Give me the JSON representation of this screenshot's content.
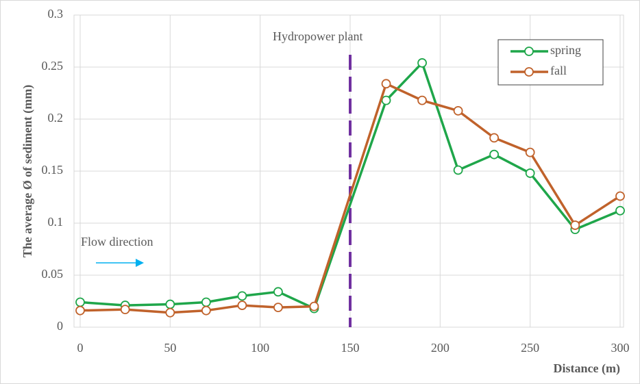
{
  "chart_data": {
    "type": "line",
    "xlabel": "Distance (m)",
    "ylabel": "The average Ø of sediment (mm)",
    "x": [
      0,
      25,
      50,
      70,
      90,
      110,
      130,
      170,
      190,
      210,
      230,
      250,
      275,
      300
    ],
    "series": [
      {
        "name": "spring",
        "color": "#1fa64a",
        "values": [
          0.024,
          0.021,
          0.022,
          0.024,
          0.03,
          0.034,
          0.018,
          0.218,
          0.254,
          0.151,
          0.166,
          0.148,
          0.094,
          0.112
        ]
      },
      {
        "name": "fall",
        "color": "#c0622b",
        "values": [
          0.016,
          0.017,
          0.014,
          0.016,
          0.021,
          0.019,
          0.02,
          0.234,
          0.218,
          0.208,
          0.182,
          0.168,
          0.098,
          0.126
        ]
      }
    ],
    "xlim": [
      0,
      300
    ],
    "xticks": [
      0,
      50,
      100,
      150,
      200,
      250,
      300
    ],
    "ylim": [
      0,
      0.3
    ],
    "yticks": [
      0,
      0.05,
      0.1,
      0.15,
      0.2,
      0.25,
      0.3
    ],
    "grid": true,
    "legend": "upper right",
    "vline": {
      "x": 150,
      "label": "Hydropower plant",
      "color": "#7030a0"
    },
    "annotation": {
      "text": "Flow direction",
      "color": "#00b0f0"
    }
  }
}
